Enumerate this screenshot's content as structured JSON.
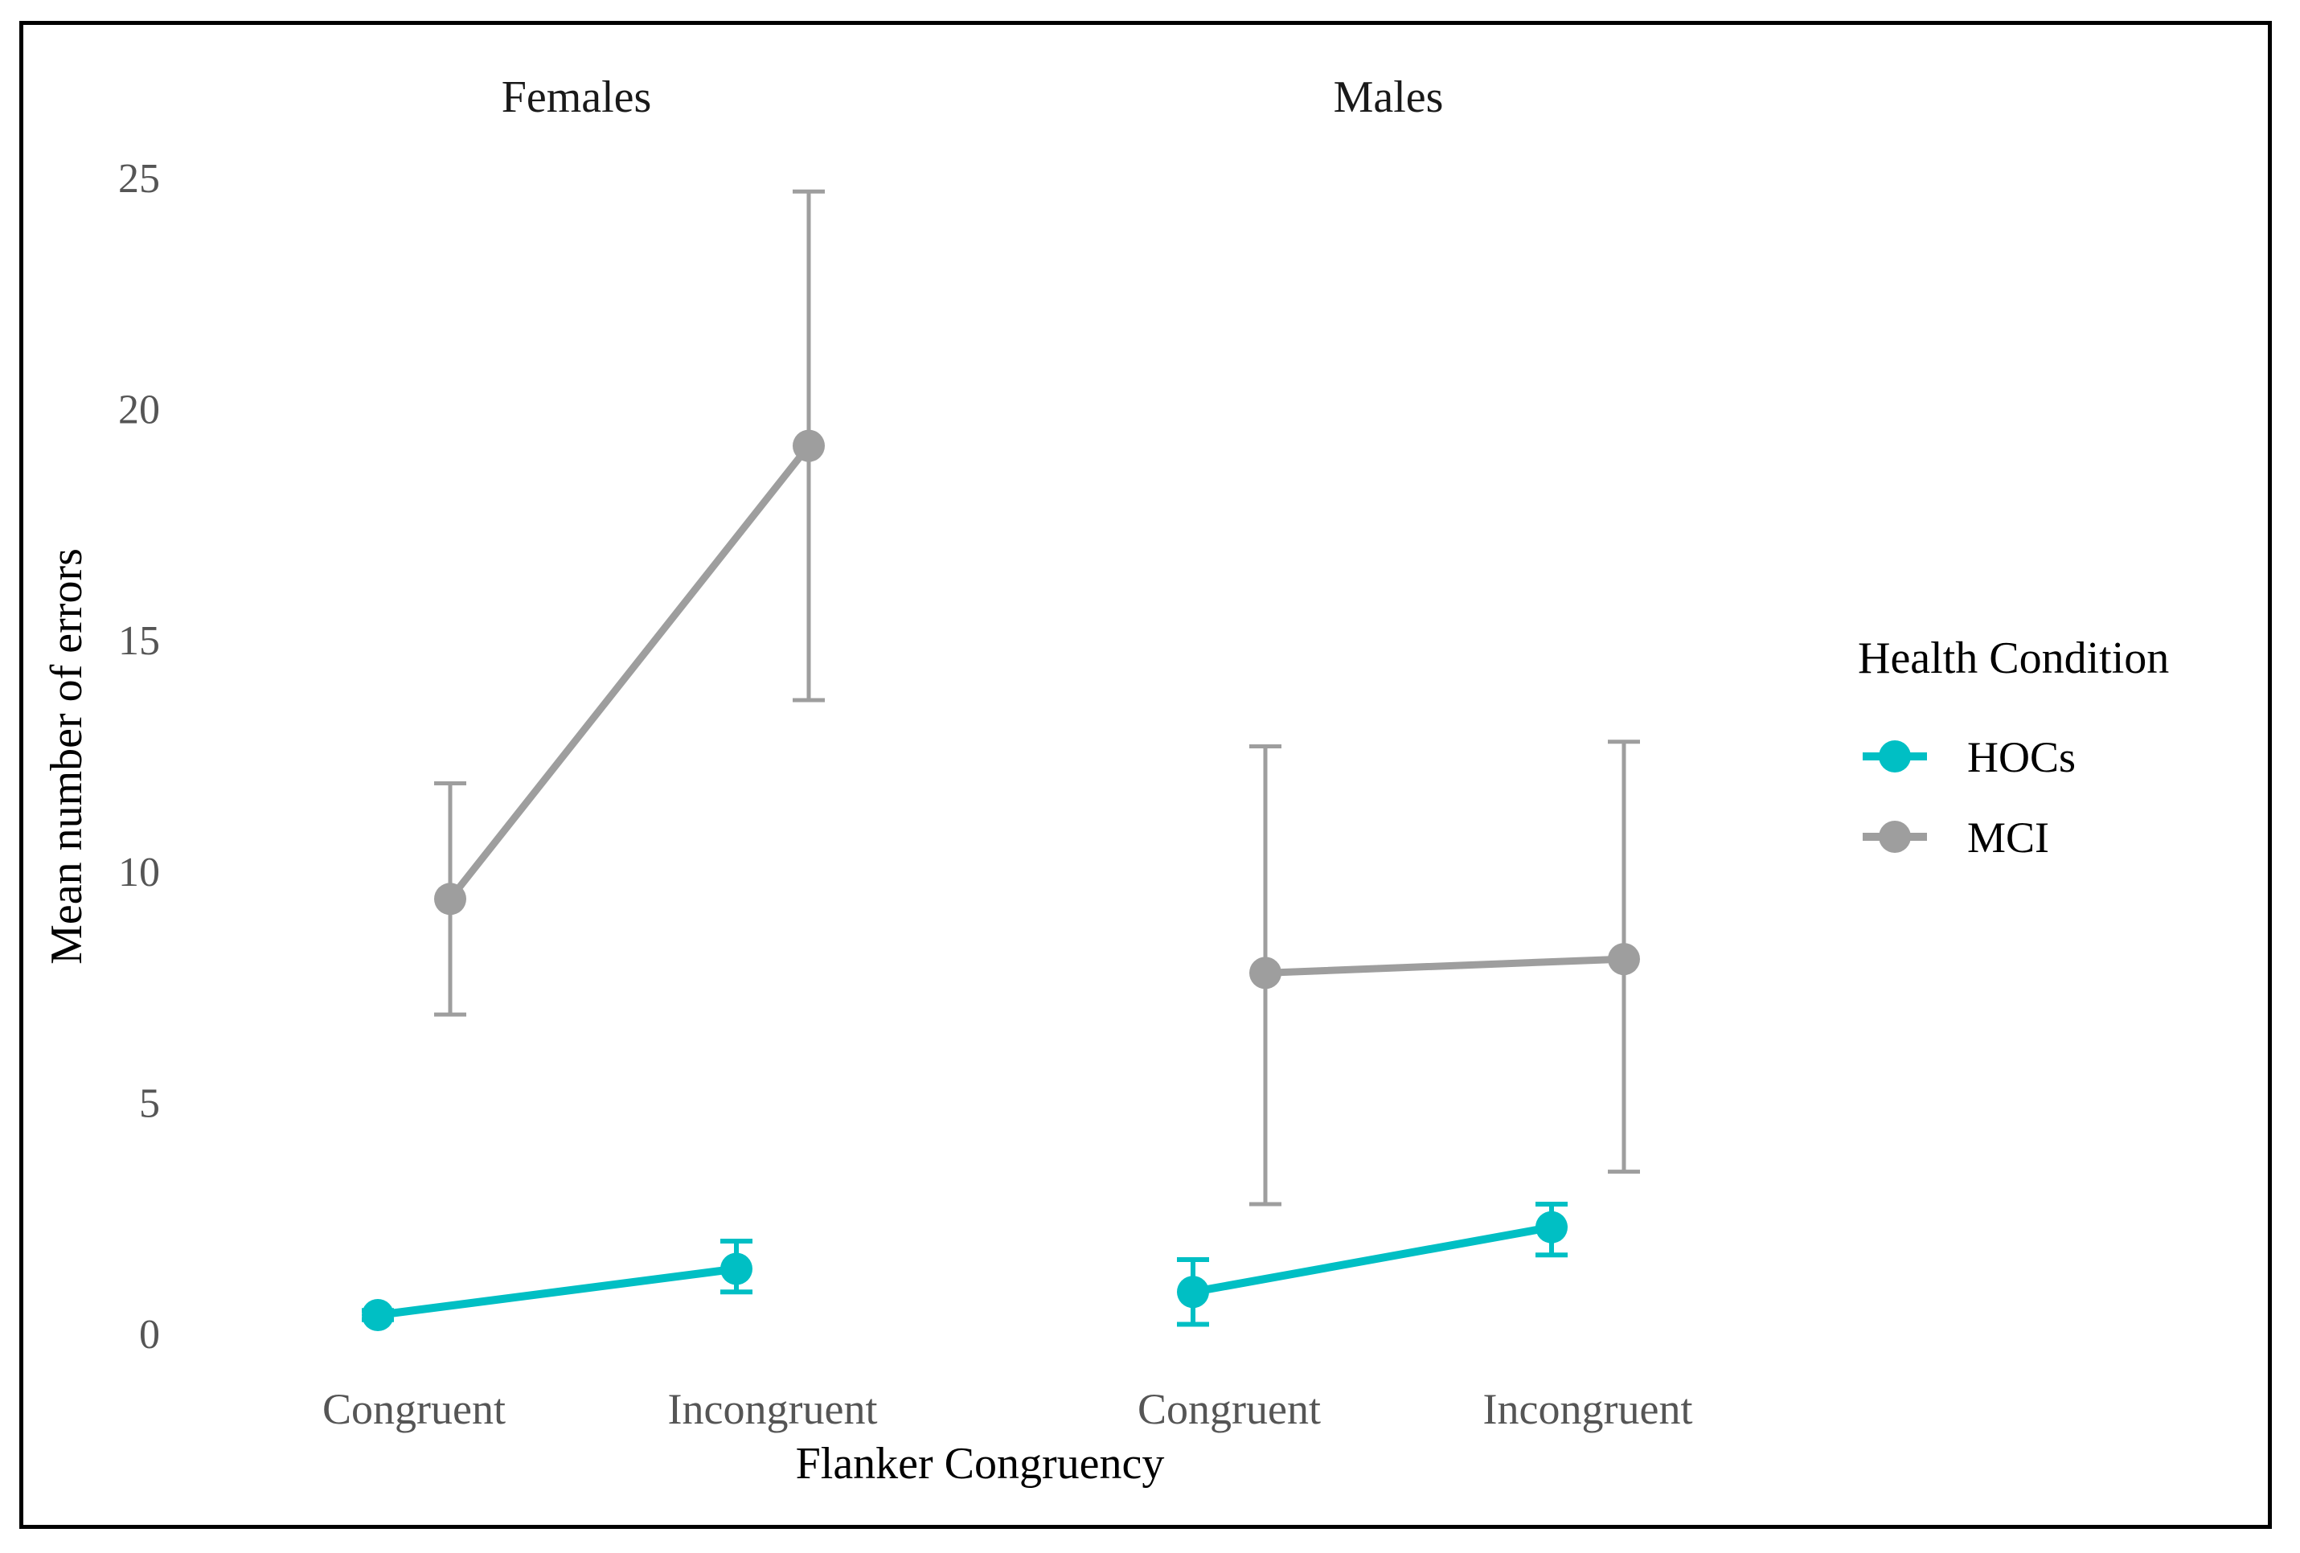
{
  "chart_data": {
    "type": "line",
    "facets": [
      "Females",
      "Males"
    ],
    "categories": [
      "Congruent",
      "Incongruent"
    ],
    "xlabel": "Flanker Congruency",
    "ylabel": "Mean number of errors",
    "ylim": [
      0,
      25
    ],
    "yticks": [
      0,
      5,
      10,
      15,
      20,
      25
    ],
    "grid": false,
    "legend": {
      "title": "Health Condition",
      "position": "right"
    },
    "series": [
      {
        "name": "HOCs",
        "color": "#00BFC4",
        "facets": [
          {
            "values": [
              0.4,
              1.4
            ],
            "lower": [
              0.3,
              0.9
            ],
            "upper": [
              0.5,
              2.0
            ]
          },
          {
            "values": [
              0.9,
              2.3
            ],
            "lower": [
              0.2,
              1.7
            ],
            "upper": [
              1.6,
              2.8
            ]
          }
        ]
      },
      {
        "name": "MCI",
        "color": "#9E9E9E",
        "facets": [
          {
            "values": [
              9.4,
              19.2
            ],
            "lower": [
              6.9,
              13.7
            ],
            "upper": [
              11.9,
              24.7
            ]
          },
          {
            "values": [
              7.8,
              8.1
            ],
            "lower": [
              2.8,
              3.5
            ],
            "upper": [
              12.7,
              12.8
            ]
          }
        ]
      }
    ]
  }
}
